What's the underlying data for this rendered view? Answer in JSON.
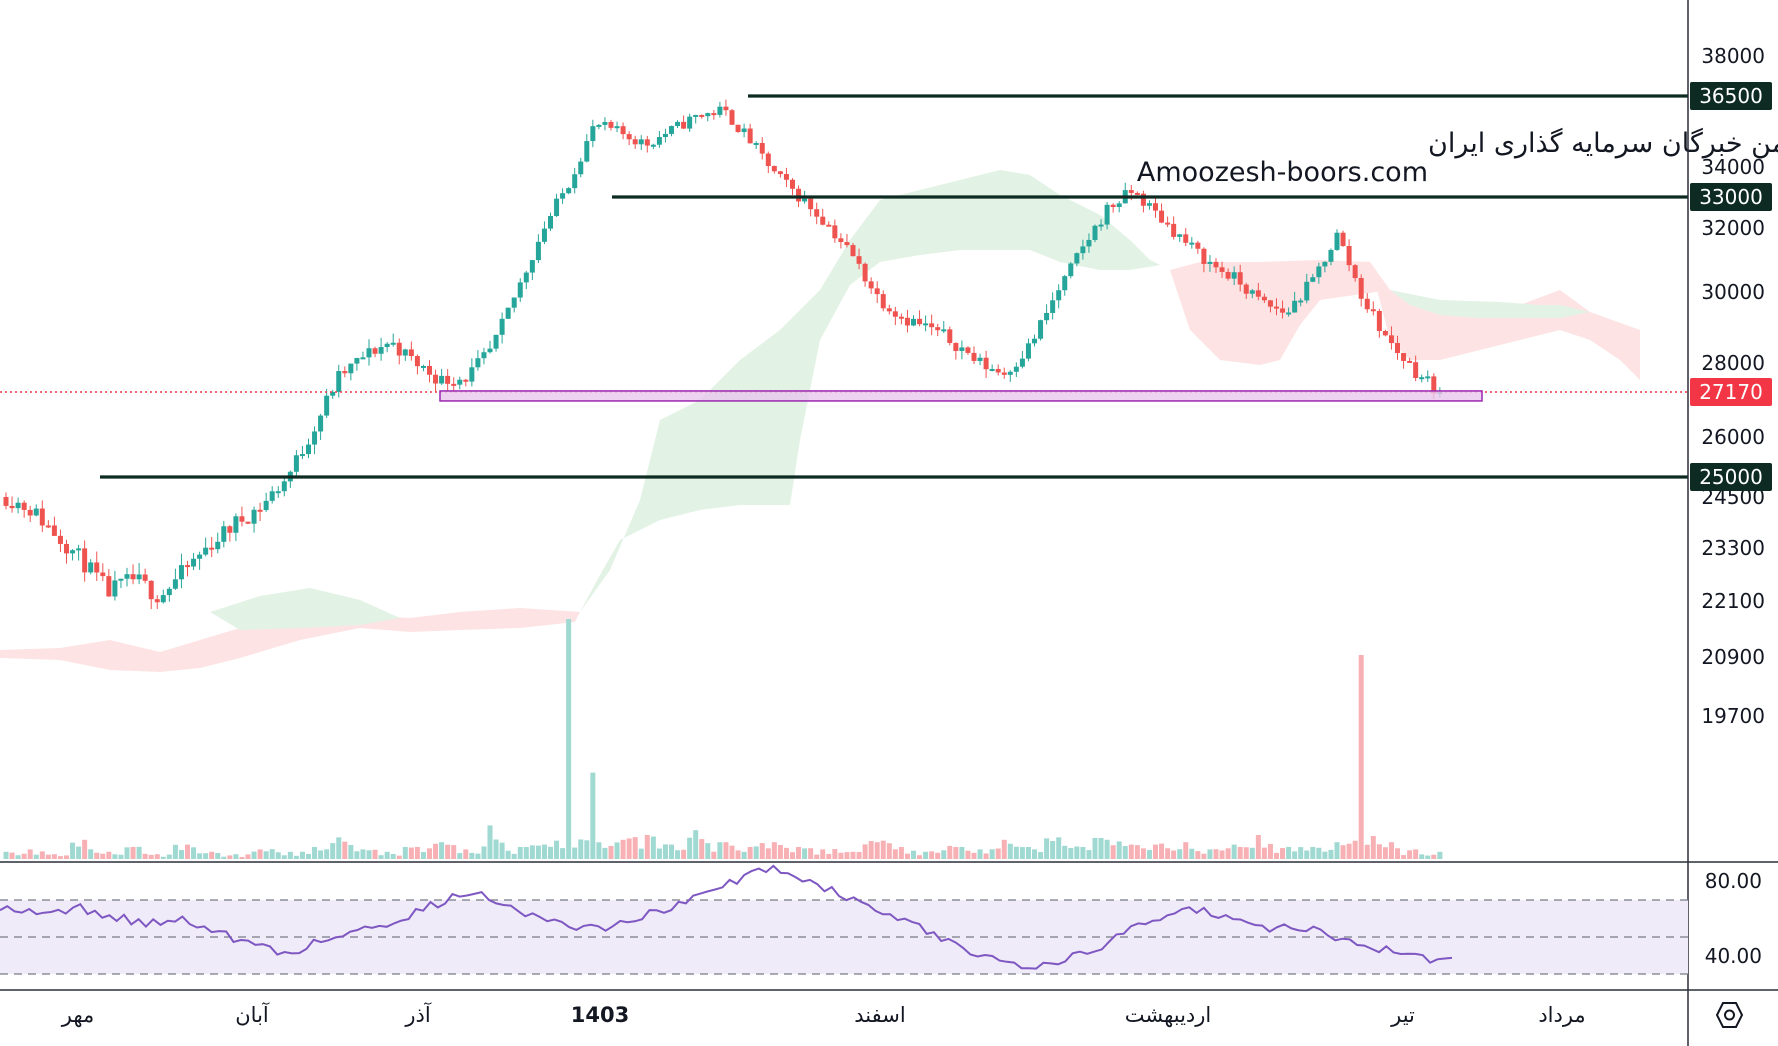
{
  "watermark": {
    "line1": "انجمن خبرگان سرمایه گذاری ایران",
    "line2": "Amoozesh-boors.com"
  },
  "colors": {
    "up": "#26a69a",
    "down": "#ef5350",
    "level_line": "#0d2b22",
    "price_badge": "#f23645",
    "level_badge": "#0d2b22",
    "zone_fill": "#e9c7ee",
    "zone_stroke": "#9c27b0",
    "rsi_line": "#7e57c2",
    "rsi_band": "#efebf8",
    "cloud_bull": "#e2f2e4",
    "cloud_bear": "#fde3e3"
  },
  "chart_data": {
    "type": "candlestick",
    "price_axis": {
      "ticks": [
        "38000",
        "36500",
        "34000",
        "33000",
        "32000",
        "30000",
        "28000",
        "27170",
        "26000",
        "25000",
        "24500",
        "23300",
        "22100",
        "20900",
        "19700"
      ]
    },
    "current_price": {
      "label": "27170",
      "value": 27170
    },
    "horizontal_levels": [
      {
        "label": "36500",
        "value": 36500
      },
      {
        "label": "33000",
        "value": 33000
      },
      {
        "label": "25000",
        "value": 25000
      }
    ],
    "support_zone": {
      "from": 26950,
      "to": 27200
    },
    "time_axis": [
      "مهر",
      "آبان",
      "آذر",
      "1403",
      "اسفند",
      "اردیبهشت",
      "تیر",
      "مرداد"
    ],
    "indicators": {
      "ichimoku_cloud": true,
      "volume": true,
      "rsi": {
        "ticks": [
          "80.00",
          "40.00"
        ],
        "levels": [
          70,
          50,
          30
        ]
      }
    },
    "close_price_path": [
      24500,
      24200,
      23600,
      23000,
      22300,
      22600,
      22200,
      22800,
      23400,
      23900,
      24300,
      25000,
      26200,
      27600,
      28200,
      28600,
      28000,
      27500,
      27600,
      28400,
      30100,
      32000,
      33500,
      35500,
      35200,
      34800,
      35300,
      35800,
      36000,
      35000,
      33800,
      33000,
      32200,
      31200,
      29900,
      29300,
      29000,
      28600,
      28000,
      27700,
      28500,
      29900,
      31300,
      32600,
      33200,
      32400,
      31600,
      30900,
      30400,
      29700,
      29400,
      30300,
      31800,
      29800,
      28600,
      27800,
      27170
    ],
    "volume_levels": [
      0.03,
      0.04,
      0.02,
      0.08,
      0.03,
      0.05,
      0.02,
      0.06,
      0.03,
      0.02,
      0.04,
      0.03,
      0.05,
      0.09,
      0.04,
      0.03,
      0.05,
      0.07,
      0.04,
      0.14,
      0.05,
      0.06,
      1.0,
      0.36,
      0.08,
      0.1,
      0.06,
      0.12,
      0.07,
      0.05,
      0.07,
      0.05,
      0.04,
      0.03,
      0.07,
      0.05,
      0.03,
      0.05,
      0.04,
      0.08,
      0.05,
      0.09,
      0.05,
      0.08,
      0.06,
      0.06,
      0.07,
      0.04,
      0.06,
      0.1,
      0.05,
      0.05,
      0.07,
      0.85,
      0.07,
      0.04,
      0.03
    ],
    "rsi_values": [
      67,
      64,
      62,
      66,
      62,
      59,
      57,
      60,
      56,
      49,
      45,
      41,
      46,
      50,
      55,
      58,
      63,
      69,
      74,
      71,
      65,
      59,
      56,
      54,
      58,
      63,
      66,
      72,
      78,
      85,
      87,
      82,
      76,
      69,
      64,
      58,
      51,
      45,
      40,
      36,
      35,
      38,
      41,
      49,
      58,
      62,
      66,
      61,
      57,
      54,
      56,
      52,
      48,
      45,
      41,
      38,
      37
    ]
  }
}
